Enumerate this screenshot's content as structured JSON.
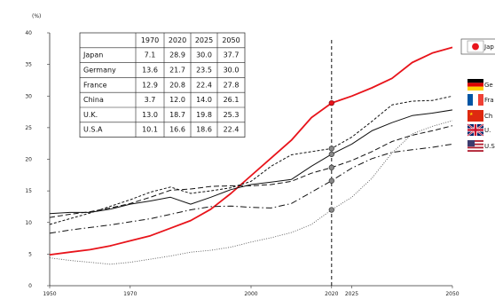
{
  "chart_data": {
    "type": "line",
    "title": "",
    "xlabel": "",
    "ylabel": "(%)",
    "xlim": [
      1950,
      2050
    ],
    "ylim": [
      0,
      40
    ],
    "yticks": [
      0,
      5,
      10,
      15,
      20,
      25,
      30,
      35,
      40
    ],
    "xticks": [
      1950,
      1970,
      2000,
      2020,
      2025,
      2050
    ],
    "reference_year": 2020,
    "series": [
      {
        "name": "Japan",
        "color": "#e8141b",
        "style": "solid-thick",
        "flag": "flag-japan-icon",
        "points": [
          [
            1950,
            4.9
          ],
          [
            1955,
            5.3
          ],
          [
            1960,
            5.7
          ],
          [
            1965,
            6.3
          ],
          [
            1970,
            7.1
          ],
          [
            1975,
            7.9
          ],
          [
            1980,
            9.1
          ],
          [
            1985,
            10.3
          ],
          [
            1990,
            12.1
          ],
          [
            1995,
            14.6
          ],
          [
            2000,
            17.4
          ],
          [
            2005,
            20.2
          ],
          [
            2010,
            23.0
          ],
          [
            2015,
            26.6
          ],
          [
            2020,
            28.9
          ],
          [
            2025,
            30.0
          ],
          [
            2030,
            31.3
          ],
          [
            2035,
            32.8
          ],
          [
            2040,
            35.3
          ],
          [
            2045,
            36.8
          ],
          [
            2050,
            37.7
          ]
        ]
      },
      {
        "name": "Germany",
        "color": "#111111",
        "style": "dashed",
        "flag": "flag-germany-icon",
        "points": [
          [
            1950,
            9.7
          ],
          [
            1960,
            11.5
          ],
          [
            1970,
            13.6
          ],
          [
            1975,
            14.8
          ],
          [
            1980,
            15.6
          ],
          [
            1985,
            14.6
          ],
          [
            1990,
            15.0
          ],
          [
            1995,
            15.5
          ],
          [
            2000,
            16.5
          ],
          [
            2005,
            18.9
          ],
          [
            2010,
            20.7
          ],
          [
            2015,
            21.2
          ],
          [
            2020,
            21.7
          ],
          [
            2025,
            23.5
          ],
          [
            2030,
            26.0
          ],
          [
            2035,
            28.6
          ],
          [
            2040,
            29.2
          ],
          [
            2045,
            29.3
          ],
          [
            2050,
            30.0
          ]
        ]
      },
      {
        "name": "France",
        "color": "#111111",
        "style": "solid",
        "flag": "flag-france-icon",
        "points": [
          [
            1950,
            11.4
          ],
          [
            1955,
            11.6
          ],
          [
            1960,
            11.6
          ],
          [
            1965,
            12.1
          ],
          [
            1970,
            12.9
          ],
          [
            1975,
            13.4
          ],
          [
            1980,
            14.0
          ],
          [
            1985,
            12.9
          ],
          [
            1990,
            14.0
          ],
          [
            1995,
            15.2
          ],
          [
            2000,
            16.0
          ],
          [
            2005,
            16.4
          ],
          [
            2010,
            16.8
          ],
          [
            2015,
            18.9
          ],
          [
            2020,
            20.8
          ],
          [
            2025,
            22.4
          ],
          [
            2030,
            24.5
          ],
          [
            2035,
            25.8
          ],
          [
            2040,
            26.9
          ],
          [
            2045,
            27.3
          ],
          [
            2050,
            27.8
          ]
        ]
      },
      {
        "name": "China",
        "color": "#555555",
        "style": "dotted",
        "flag": "flag-china-icon",
        "points": [
          [
            1950,
            4.4
          ],
          [
            1955,
            4.0
          ],
          [
            1960,
            3.7
          ],
          [
            1965,
            3.4
          ],
          [
            1970,
            3.7
          ],
          [
            1975,
            4.2
          ],
          [
            1980,
            4.7
          ],
          [
            1985,
            5.3
          ],
          [
            1990,
            5.6
          ],
          [
            1995,
            6.1
          ],
          [
            2000,
            6.9
          ],
          [
            2005,
            7.6
          ],
          [
            2010,
            8.4
          ],
          [
            2015,
            9.7
          ],
          [
            2020,
            12.0
          ],
          [
            2025,
            14.0
          ],
          [
            2030,
            17.0
          ],
          [
            2035,
            21.0
          ],
          [
            2040,
            24.0
          ],
          [
            2045,
            25.2
          ],
          [
            2050,
            26.1
          ]
        ]
      },
      {
        "name": "U.K.",
        "color": "#111111",
        "style": "long-dash",
        "flag": "flag-uk-icon",
        "points": [
          [
            1950,
            10.8
          ],
          [
            1955,
            11.3
          ],
          [
            1960,
            11.7
          ],
          [
            1965,
            12.3
          ],
          [
            1970,
            13.0
          ],
          [
            1975,
            14.0
          ],
          [
            1980,
            15.1
          ],
          [
            1985,
            15.3
          ],
          [
            1990,
            15.7
          ],
          [
            1995,
            15.8
          ],
          [
            2000,
            15.8
          ],
          [
            2005,
            16.0
          ],
          [
            2010,
            16.5
          ],
          [
            2015,
            17.8
          ],
          [
            2020,
            18.7
          ],
          [
            2025,
            19.8
          ],
          [
            2030,
            21.2
          ],
          [
            2035,
            22.8
          ],
          [
            2040,
            23.8
          ],
          [
            2045,
            24.5
          ],
          [
            2050,
            25.3
          ]
        ]
      },
      {
        "name": "U.S.A",
        "color": "#111111",
        "style": "dash-dot",
        "flag": "flag-usa-icon",
        "points": [
          [
            1950,
            8.3
          ],
          [
            1955,
            8.8
          ],
          [
            1960,
            9.2
          ],
          [
            1965,
            9.6
          ],
          [
            1970,
            10.1
          ],
          [
            1975,
            10.6
          ],
          [
            1980,
            11.3
          ],
          [
            1985,
            12.0
          ],
          [
            1990,
            12.5
          ],
          [
            1995,
            12.6
          ],
          [
            2000,
            12.4
          ],
          [
            2005,
            12.3
          ],
          [
            2010,
            13.0
          ],
          [
            2015,
            14.8
          ],
          [
            2020,
            16.6
          ],
          [
            2025,
            18.6
          ],
          [
            2030,
            20.1
          ],
          [
            2035,
            21.1
          ],
          [
            2040,
            21.5
          ],
          [
            2045,
            21.9
          ],
          [
            2050,
            22.4
          ]
        ]
      }
    ],
    "table": {
      "headers": [
        "",
        "1970",
        "2020",
        "2025",
        "2050"
      ],
      "rows": [
        [
          "Japan",
          "7.1",
          "28.9",
          "30.0",
          "37.7"
        ],
        [
          "Germany",
          "13.6",
          "21.7",
          "23.5",
          "30.0"
        ],
        [
          "France",
          "12.9",
          "20.8",
          "22.4",
          "27.8"
        ],
        [
          "China",
          "3.7",
          "12.0",
          "14.0",
          "26.1"
        ],
        [
          "U.K.",
          "13.0",
          "18.7",
          "19.8",
          "25.3"
        ],
        [
          "U.S.A",
          "10.1",
          "16.6",
          "18.6",
          "22.4"
        ]
      ]
    },
    "legend": {
      "placement": "right",
      "labels": [
        "Jap",
        "Ge",
        "Fra",
        "Ch",
        "U.",
        "U.S"
      ]
    }
  }
}
